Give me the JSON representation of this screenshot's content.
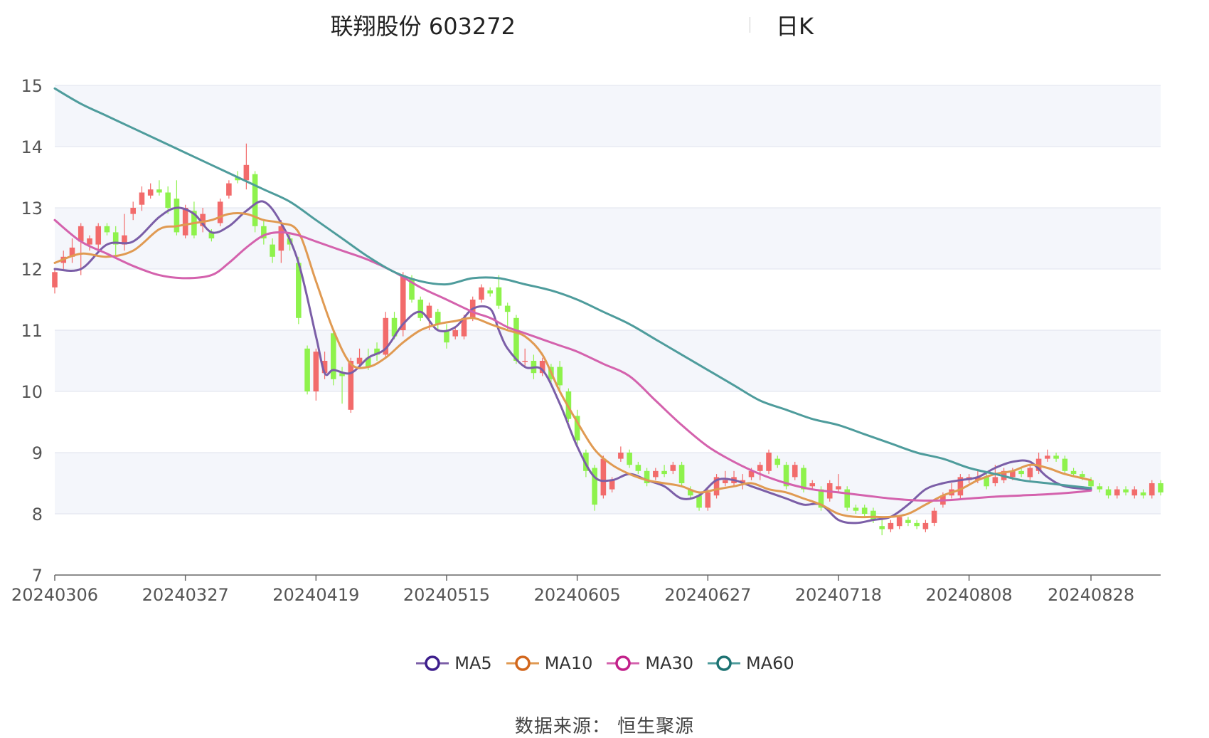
{
  "title": {
    "main": "联翔股份 603272",
    "period": "日K"
  },
  "source": "数据来源： 恒生聚源",
  "colors": {
    "up": "#f26b6b",
    "down": "#8ef24c",
    "band": "#f4f6fb",
    "grid": "#dfe3ee",
    "axis": "#666666"
  },
  "chart_data": {
    "type": "candlestick",
    "y_axis": {
      "min": 7,
      "max": 15,
      "ticks": [
        7,
        8,
        9,
        10,
        11,
        12,
        13,
        14,
        15
      ]
    },
    "x_axis": {
      "tick_labels": [
        "20240306",
        "20240327",
        "20240419",
        "20240515",
        "20240605",
        "20240627",
        "20240718",
        "20240808",
        "20240828"
      ],
      "tick_indices": [
        0,
        15,
        30,
        45,
        60,
        75,
        90,
        105,
        119
      ]
    },
    "legend": [
      {
        "name": "MA5",
        "color": "#7b5ea7",
        "marker": "#3d1e8c"
      },
      {
        "name": "MA10",
        "color": "#e09a52",
        "marker": "#d2661c"
      },
      {
        "name": "MA30",
        "color": "#d462ad",
        "marker": "#c2208a"
      },
      {
        "name": "MA60",
        "color": "#4e9c9c",
        "marker": "#1c7272"
      }
    ],
    "candles": [
      {
        "o": 11.7,
        "c": 11.95,
        "h": 12.0,
        "l": 11.6
      },
      {
        "o": 12.1,
        "c": 12.2,
        "h": 12.3,
        "l": 12.0
      },
      {
        "o": 12.2,
        "c": 12.35,
        "h": 12.5,
        "l": 12.1
      },
      {
        "o": 12.45,
        "c": 12.7,
        "h": 12.75,
        "l": 11.9
      },
      {
        "o": 12.4,
        "c": 12.5,
        "h": 12.55,
        "l": 12.3
      },
      {
        "o": 12.4,
        "c": 12.7,
        "h": 12.75,
        "l": 12.3
      },
      {
        "o": 12.7,
        "c": 12.6,
        "h": 12.75,
        "l": 12.55
      },
      {
        "o": 12.6,
        "c": 12.4,
        "h": 12.7,
        "l": 12.2
      },
      {
        "o": 12.4,
        "c": 12.55,
        "h": 12.9,
        "l": 12.3
      },
      {
        "o": 12.9,
        "c": 13.0,
        "h": 13.1,
        "l": 12.8
      },
      {
        "o": 13.05,
        "c": 13.25,
        "h": 13.35,
        "l": 12.95
      },
      {
        "o": 13.2,
        "c": 13.3,
        "h": 13.4,
        "l": 13.15
      },
      {
        "o": 13.3,
        "c": 13.25,
        "h": 13.45,
        "l": 13.2
      },
      {
        "o": 13.25,
        "c": 13.0,
        "h": 13.35,
        "l": 12.9
      },
      {
        "o": 13.15,
        "c": 12.6,
        "h": 13.45,
        "l": 12.55
      },
      {
        "o": 12.55,
        "c": 13.0,
        "h": 13.05,
        "l": 12.5
      },
      {
        "o": 12.95,
        "c": 12.55,
        "h": 13.1,
        "l": 12.5
      },
      {
        "o": 12.7,
        "c": 12.9,
        "h": 13.0,
        "l": 12.6
      },
      {
        "o": 12.6,
        "c": 12.5,
        "h": 12.65,
        "l": 12.45
      },
      {
        "o": 12.75,
        "c": 13.1,
        "h": 13.15,
        "l": 12.7
      },
      {
        "o": 13.2,
        "c": 13.4,
        "h": 13.45,
        "l": 13.15
      },
      {
        "o": 13.5,
        "c": 13.45,
        "h": 13.6,
        "l": 13.4
      },
      {
        "o": 13.45,
        "c": 13.7,
        "h": 14.05,
        "l": 13.3
      },
      {
        "o": 13.55,
        "c": 12.7,
        "h": 13.6,
        "l": 12.6
      },
      {
        "o": 12.7,
        "c": 12.5,
        "h": 12.8,
        "l": 12.4
      },
      {
        "o": 12.4,
        "c": 12.2,
        "h": 12.5,
        "l": 12.1
      },
      {
        "o": 12.3,
        "c": 12.7,
        "h": 12.8,
        "l": 12.1
      },
      {
        "o": 12.5,
        "c": 12.4,
        "h": 12.6,
        "l": 12.3
      },
      {
        "o": 12.1,
        "c": 11.2,
        "h": 12.2,
        "l": 11.1
      },
      {
        "o": 10.7,
        "c": 10.0,
        "h": 10.75,
        "l": 9.95
      },
      {
        "o": 10.0,
        "c": 10.65,
        "h": 10.7,
        "l": 9.85
      },
      {
        "o": 10.3,
        "c": 10.5,
        "h": 10.65,
        "l": 10.2
      },
      {
        "o": 10.95,
        "c": 10.2,
        "h": 11.0,
        "l": 10.1
      },
      {
        "o": 10.3,
        "c": 10.25,
        "h": 10.4,
        "l": 9.8
      },
      {
        "o": 9.7,
        "c": 10.5,
        "h": 10.55,
        "l": 9.65
      },
      {
        "o": 10.45,
        "c": 10.55,
        "h": 10.7,
        "l": 10.4
      },
      {
        "o": 10.55,
        "c": 10.4,
        "h": 10.7,
        "l": 10.35
      },
      {
        "o": 10.7,
        "c": 10.6,
        "h": 10.8,
        "l": 10.5
      },
      {
        "o": 10.6,
        "c": 11.2,
        "h": 11.3,
        "l": 10.55
      },
      {
        "o": 11.2,
        "c": 10.9,
        "h": 11.3,
        "l": 10.85
      },
      {
        "o": 11.0,
        "c": 11.9,
        "h": 11.95,
        "l": 10.9
      },
      {
        "o": 11.85,
        "c": 11.5,
        "h": 11.9,
        "l": 11.45
      },
      {
        "o": 11.5,
        "c": 11.2,
        "h": 11.55,
        "l": 11.15
      },
      {
        "o": 11.2,
        "c": 11.4,
        "h": 11.45,
        "l": 11.0
      },
      {
        "o": 11.3,
        "c": 11.1,
        "h": 11.35,
        "l": 11.0
      },
      {
        "o": 11.0,
        "c": 10.8,
        "h": 11.1,
        "l": 10.7
      },
      {
        "o": 10.9,
        "c": 11.0,
        "h": 11.05,
        "l": 10.85
      },
      {
        "o": 10.9,
        "c": 11.2,
        "h": 11.25,
        "l": 10.85
      },
      {
        "o": 11.2,
        "c": 11.5,
        "h": 11.55,
        "l": 11.15
      },
      {
        "o": 11.5,
        "c": 11.7,
        "h": 11.75,
        "l": 11.45
      },
      {
        "o": 11.65,
        "c": 11.6,
        "h": 11.7,
        "l": 11.55
      },
      {
        "o": 11.7,
        "c": 11.4,
        "h": 11.9,
        "l": 11.35
      },
      {
        "o": 11.4,
        "c": 11.3,
        "h": 11.45,
        "l": 11.0
      },
      {
        "o": 11.2,
        "c": 10.5,
        "h": 11.25,
        "l": 10.45
      },
      {
        "o": 10.5,
        "c": 10.5,
        "h": 10.7,
        "l": 10.4
      },
      {
        "o": 10.5,
        "c": 10.3,
        "h": 10.6,
        "l": 10.2
      },
      {
        "o": 10.3,
        "c": 10.5,
        "h": 10.55,
        "l": 10.25
      },
      {
        "o": 10.4,
        "c": 10.2,
        "h": 10.45,
        "l": 10.1
      },
      {
        "o": 10.4,
        "c": 10.1,
        "h": 10.5,
        "l": 10.0
      },
      {
        "o": 10.0,
        "c": 9.55,
        "h": 10.05,
        "l": 9.5
      },
      {
        "o": 9.6,
        "c": 9.2,
        "h": 9.7,
        "l": 9.1
      },
      {
        "o": 9.0,
        "c": 8.7,
        "h": 9.05,
        "l": 8.6
      },
      {
        "o": 8.75,
        "c": 8.15,
        "h": 8.8,
        "l": 8.05
      },
      {
        "o": 8.3,
        "c": 8.9,
        "h": 8.95,
        "l": 8.25
      },
      {
        "o": 8.4,
        "c": 8.55,
        "h": 8.6,
        "l": 8.35
      },
      {
        "o": 8.9,
        "c": 9.0,
        "h": 9.1,
        "l": 8.85
      },
      {
        "o": 9.0,
        "c": 8.8,
        "h": 9.05,
        "l": 8.75
      },
      {
        "o": 8.8,
        "c": 8.7,
        "h": 8.85,
        "l": 8.65
      },
      {
        "o": 8.7,
        "c": 8.5,
        "h": 8.75,
        "l": 8.45
      },
      {
        "o": 8.6,
        "c": 8.7,
        "h": 8.75,
        "l": 8.55
      },
      {
        "o": 8.7,
        "c": 8.65,
        "h": 8.8,
        "l": 8.6
      },
      {
        "o": 8.7,
        "c": 8.8,
        "h": 8.85,
        "l": 8.65
      },
      {
        "o": 8.8,
        "c": 8.5,
        "h": 8.85,
        "l": 8.45
      },
      {
        "o": 8.4,
        "c": 8.3,
        "h": 8.45,
        "l": 8.25
      },
      {
        "o": 8.3,
        "c": 8.1,
        "h": 8.35,
        "l": 8.05
      },
      {
        "o": 8.1,
        "c": 8.35,
        "h": 8.4,
        "l": 8.05
      },
      {
        "o": 8.3,
        "c": 8.6,
        "h": 8.65,
        "l": 8.25
      },
      {
        "o": 8.5,
        "c": 8.55,
        "h": 8.7,
        "l": 8.45
      },
      {
        "o": 8.5,
        "c": 8.6,
        "h": 8.7,
        "l": 8.45
      },
      {
        "o": 8.5,
        "c": 8.55,
        "h": 8.65,
        "l": 8.4
      },
      {
        "o": 8.6,
        "c": 8.7,
        "h": 8.75,
        "l": 8.55
      },
      {
        "o": 8.7,
        "c": 8.8,
        "h": 8.85,
        "l": 8.55
      },
      {
        "o": 8.7,
        "c": 9.0,
        "h": 9.05,
        "l": 8.65
      },
      {
        "o": 8.9,
        "c": 8.8,
        "h": 8.95,
        "l": 8.75
      },
      {
        "o": 8.8,
        "c": 8.45,
        "h": 8.85,
        "l": 8.4
      },
      {
        "o": 8.6,
        "c": 8.8,
        "h": 8.85,
        "l": 8.55
      },
      {
        "o": 8.75,
        "c": 8.4,
        "h": 8.8,
        "l": 8.35
      },
      {
        "o": 8.45,
        "c": 8.5,
        "h": 8.55,
        "l": 8.4
      },
      {
        "o": 8.4,
        "c": 8.1,
        "h": 8.45,
        "l": 8.05
      },
      {
        "o": 8.25,
        "c": 8.5,
        "h": 8.55,
        "l": 8.2
      },
      {
        "o": 8.4,
        "c": 8.45,
        "h": 8.65,
        "l": 8.35
      },
      {
        "o": 8.4,
        "c": 8.1,
        "h": 8.45,
        "l": 8.05
      },
      {
        "o": 8.1,
        "c": 8.05,
        "h": 8.15,
        "l": 8.0
      },
      {
        "o": 8.1,
        "c": 8.0,
        "h": 8.15,
        "l": 7.95
      },
      {
        "o": 8.05,
        "c": 7.9,
        "h": 8.1,
        "l": 7.85
      },
      {
        "o": 7.8,
        "c": 7.75,
        "h": 7.9,
        "l": 7.65
      },
      {
        "o": 7.75,
        "c": 7.85,
        "h": 7.9,
        "l": 7.7
      },
      {
        "o": 7.8,
        "c": 7.95,
        "h": 7.95,
        "l": 7.75
      },
      {
        "o": 7.9,
        "c": 7.85,
        "h": 7.95,
        "l": 7.8
      },
      {
        "o": 7.85,
        "c": 7.8,
        "h": 7.9,
        "l": 7.75
      },
      {
        "o": 7.75,
        "c": 7.85,
        "h": 7.9,
        "l": 7.7
      },
      {
        "o": 7.85,
        "c": 8.05,
        "h": 8.1,
        "l": 7.8
      },
      {
        "o": 8.15,
        "c": 8.3,
        "h": 8.35,
        "l": 8.1
      },
      {
        "o": 8.3,
        "c": 8.4,
        "h": 8.5,
        "l": 8.25
      },
      {
        "o": 8.3,
        "c": 8.6,
        "h": 8.65,
        "l": 8.25
      },
      {
        "o": 8.55,
        "c": 8.6,
        "h": 8.65,
        "l": 8.5
      },
      {
        "o": 8.55,
        "c": 8.6,
        "h": 8.7,
        "l": 8.5
      },
      {
        "o": 8.6,
        "c": 8.45,
        "h": 8.65,
        "l": 8.4
      },
      {
        "o": 8.5,
        "c": 8.6,
        "h": 8.8,
        "l": 8.45
      },
      {
        "o": 8.55,
        "c": 8.7,
        "h": 8.75,
        "l": 8.5
      },
      {
        "o": 8.6,
        "c": 8.7,
        "h": 8.75,
        "l": 8.55
      },
      {
        "o": 8.7,
        "c": 8.65,
        "h": 8.75,
        "l": 8.6
      },
      {
        "o": 8.6,
        "c": 8.75,
        "h": 8.8,
        "l": 8.55
      },
      {
        "o": 8.7,
        "c": 8.9,
        "h": 9.0,
        "l": 8.65
      },
      {
        "o": 8.9,
        "c": 8.95,
        "h": 9.05,
        "l": 8.85
      },
      {
        "o": 8.95,
        "c": 8.9,
        "h": 9.0,
        "l": 8.85
      },
      {
        "o": 8.9,
        "c": 8.7,
        "h": 8.95,
        "l": 8.65
      },
      {
        "o": 8.7,
        "c": 8.65,
        "h": 8.75,
        "l": 8.6
      },
      {
        "o": 8.65,
        "c": 8.6,
        "h": 8.7,
        "l": 8.55
      },
      {
        "o": 8.55,
        "c": 8.45,
        "h": 8.6,
        "l": 8.4
      },
      {
        "o": 8.45,
        "c": 8.4,
        "h": 8.5,
        "l": 8.35
      },
      {
        "o": 8.4,
        "c": 8.3,
        "h": 8.45,
        "l": 8.25
      },
      {
        "o": 8.3,
        "c": 8.4,
        "h": 8.45,
        "l": 8.25
      },
      {
        "o": 8.4,
        "c": 8.35,
        "h": 8.45,
        "l": 8.3
      },
      {
        "o": 8.3,
        "c": 8.4,
        "h": 8.45,
        "l": 8.25
      },
      {
        "o": 8.35,
        "c": 8.3,
        "h": 8.4,
        "l": 8.25
      },
      {
        "o": 8.3,
        "c": 8.5,
        "h": 8.55,
        "l": 8.25
      },
      {
        "o": 8.5,
        "c": 8.35,
        "h": 8.55,
        "l": 8.3
      }
    ],
    "ma_series": {
      "MA5": {
        "x": [
          0,
          3,
          6,
          9,
          12,
          14,
          16,
          18,
          20,
          22,
          24,
          26,
          28,
          30,
          31,
          32,
          34,
          36,
          38,
          40,
          42,
          44,
          46,
          48,
          50,
          51,
          52,
          54,
          56,
          58,
          60,
          62,
          64,
          66,
          68,
          70,
          72,
          74,
          76,
          78,
          80,
          82,
          84,
          86,
          88,
          90,
          92,
          94,
          96,
          98,
          100,
          102,
          104,
          106,
          108,
          110,
          112,
          114,
          116,
          119
        ],
        "y": [
          12.0,
          12.0,
          12.4,
          12.45,
          12.85,
          13.0,
          12.9,
          12.6,
          12.7,
          12.95,
          13.1,
          12.75,
          12.1,
          10.9,
          10.3,
          10.35,
          10.3,
          10.55,
          10.7,
          11.1,
          11.3,
          11.0,
          11.05,
          11.35,
          11.35,
          11.0,
          10.7,
          10.4,
          10.35,
          9.8,
          9.1,
          8.6,
          8.55,
          8.65,
          8.55,
          8.45,
          8.25,
          8.3,
          8.55,
          8.55,
          8.45,
          8.35,
          8.25,
          8.15,
          8.15,
          7.9,
          7.85,
          7.9,
          7.95,
          8.15,
          8.4,
          8.5,
          8.55,
          8.6,
          8.75,
          8.85,
          8.85,
          8.6,
          8.45,
          8.4
        ]
      },
      "MA10": {
        "x": [
          0,
          3,
          6,
          9,
          12,
          14,
          16,
          18,
          20,
          22,
          24,
          26,
          28,
          30,
          32,
          34,
          36,
          38,
          40,
          42,
          44,
          46,
          48,
          50,
          52,
          54,
          56,
          58,
          60,
          62,
          64,
          66,
          68,
          70,
          72,
          74,
          76,
          78,
          80,
          82,
          84,
          86,
          88,
          90,
          92,
          94,
          96,
          98,
          100,
          102,
          104,
          106,
          108,
          110,
          112,
          114,
          116,
          119
        ],
        "y": [
          12.1,
          12.25,
          12.2,
          12.3,
          12.65,
          12.7,
          12.75,
          12.8,
          12.9,
          12.9,
          12.8,
          12.75,
          12.6,
          11.8,
          11.0,
          10.45,
          10.4,
          10.55,
          10.8,
          11.0,
          11.1,
          11.15,
          11.2,
          11.1,
          11.0,
          10.9,
          10.6,
          10.0,
          9.5,
          9.05,
          8.8,
          8.65,
          8.55,
          8.5,
          8.45,
          8.35,
          8.4,
          8.45,
          8.5,
          8.4,
          8.35,
          8.25,
          8.15,
          8.0,
          7.95,
          7.95,
          7.95,
          8.0,
          8.15,
          8.3,
          8.4,
          8.55,
          8.65,
          8.7,
          8.8,
          8.75,
          8.65,
          8.55
        ]
      },
      "MA30": {
        "x": [
          0,
          3,
          6,
          9,
          12,
          15,
          18,
          20,
          22,
          24,
          26,
          28,
          30,
          33,
          36,
          39,
          42,
          45,
          48,
          50,
          52,
          54,
          56,
          58,
          60,
          63,
          66,
          69,
          72,
          75,
          78,
          81,
          84,
          87,
          90,
          93,
          96,
          99,
          102,
          105,
          108,
          111,
          114,
          117,
          119
        ],
        "y": [
          12.8,
          12.45,
          12.25,
          12.05,
          11.9,
          11.85,
          11.9,
          12.1,
          12.35,
          12.55,
          12.6,
          12.55,
          12.45,
          12.3,
          12.15,
          11.95,
          11.7,
          11.5,
          11.3,
          11.2,
          11.05,
          10.95,
          10.85,
          10.75,
          10.65,
          10.45,
          10.25,
          9.85,
          9.45,
          9.1,
          8.85,
          8.65,
          8.5,
          8.4,
          8.35,
          8.3,
          8.25,
          8.22,
          8.22,
          8.25,
          8.28,
          8.3,
          8.32,
          8.35,
          8.38
        ]
      },
      "MA60": {
        "x": [
          0,
          3,
          6,
          9,
          12,
          15,
          18,
          21,
          24,
          27,
          30,
          33,
          36,
          39,
          42,
          45,
          48,
          51,
          54,
          57,
          60,
          63,
          66,
          69,
          72,
          75,
          78,
          81,
          84,
          87,
          90,
          93,
          96,
          99,
          102,
          105,
          108,
          111,
          114,
          117,
          119
        ],
        "y": [
          14.95,
          14.7,
          14.5,
          14.3,
          14.1,
          13.9,
          13.7,
          13.5,
          13.3,
          13.1,
          12.8,
          12.5,
          12.2,
          11.95,
          11.8,
          11.75,
          11.85,
          11.85,
          11.75,
          11.65,
          11.5,
          11.3,
          11.1,
          10.85,
          10.6,
          10.35,
          10.1,
          9.85,
          9.7,
          9.55,
          9.45,
          9.3,
          9.15,
          9.0,
          8.9,
          8.75,
          8.65,
          8.55,
          8.5,
          8.45,
          8.42
        ]
      }
    }
  }
}
